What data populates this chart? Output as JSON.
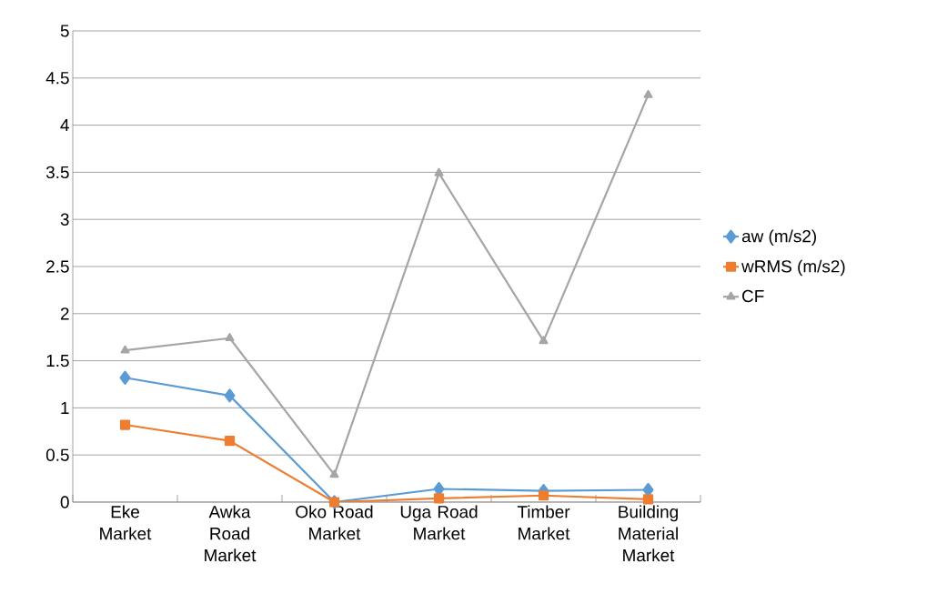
{
  "chart_data": {
    "type": "line",
    "categories": [
      "Eke Market",
      "Awka Road Market",
      "Oko Road Market",
      "Uga Road Market",
      "Timber Market",
      "Building Material Market"
    ],
    "series": [
      {
        "name": "aw (m/s2)",
        "color": "#5b9bd5",
        "marker": "diamond",
        "values": [
          1.32,
          1.13,
          0,
          0.14,
          0.12,
          0.13
        ]
      },
      {
        "name": "wRMS (m/s2)",
        "color": "#ed7d31",
        "marker": "square",
        "values": [
          0.82,
          0.65,
          0,
          0.04,
          0.07,
          0.03
        ]
      },
      {
        "name": "CF",
        "color": "#a5a5a5",
        "marker": "triangle",
        "values": [
          1.61,
          1.74,
          0.29,
          3.49,
          1.71,
          4.32
        ]
      }
    ],
    "ylim": [
      0,
      5
    ],
    "yticks": [
      0,
      0.5,
      1,
      1.5,
      2,
      2.5,
      3,
      3.5,
      4,
      4.5,
      5
    ],
    "grid": "y",
    "legend": "right",
    "line_style": "solid"
  }
}
